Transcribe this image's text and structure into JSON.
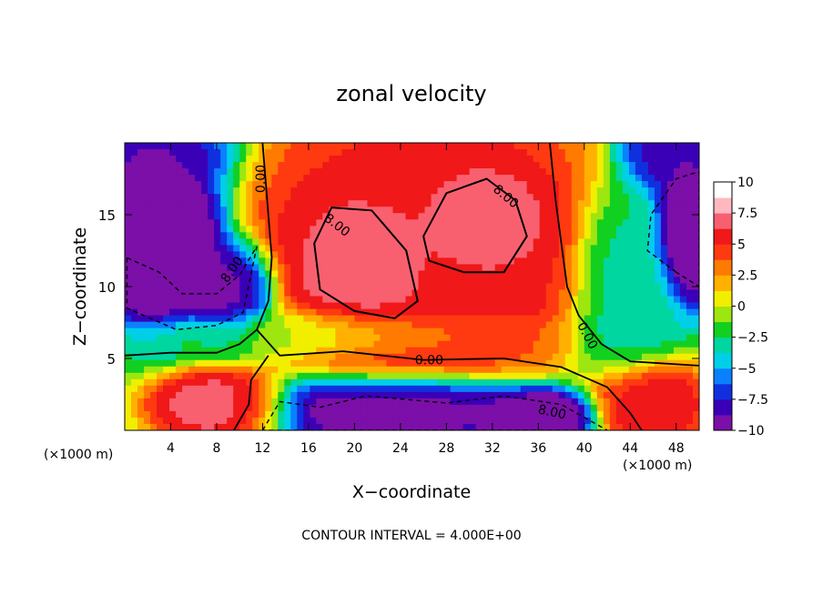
{
  "chart_data": {
    "type": "heatmap",
    "title": "zonal velocity",
    "xlabel": "X−coordinate",
    "ylabel": "Z−coordinate",
    "x_unit_left": "(×1000 m)",
    "x_unit_right": "(×1000 m)",
    "footer": "CONTOUR INTERVAL = 4.000E+00",
    "xlim": [
      0,
      50
    ],
    "ylim": [
      0,
      20
    ],
    "x_ticks": [
      {
        "value": 4,
        "label": "4"
      },
      {
        "value": 8,
        "label": "8"
      },
      {
        "value": 12,
        "label": "12"
      },
      {
        "value": 16,
        "label": "16"
      },
      {
        "value": 20,
        "label": "20"
      },
      {
        "value": 24,
        "label": "24"
      },
      {
        "value": 28,
        "label": "28"
      },
      {
        "value": 32,
        "label": "32"
      },
      {
        "value": 36,
        "label": "36"
      },
      {
        "value": 40,
        "label": "40"
      },
      {
        "value": 44,
        "label": "44"
      },
      {
        "value": 48,
        "label": "48"
      }
    ],
    "y_ticks": [
      {
        "value": 5,
        "label": "5"
      },
      {
        "value": 10,
        "label": "10"
      },
      {
        "value": 15,
        "label": "15"
      }
    ],
    "colorbar": {
      "range": [
        -10,
        10
      ],
      "labels": [
        {
          "value": 10,
          "label": "10"
        },
        {
          "value": 7.5,
          "label": "7.5"
        },
        {
          "value": 5,
          "label": "5"
        },
        {
          "value": 2.5,
          "label": "2.5"
        },
        {
          "value": 0,
          "label": "0"
        },
        {
          "value": -2.5,
          "label": "−2.5"
        },
        {
          "value": -5,
          "label": "−5"
        },
        {
          "value": -7.5,
          "label": "−7.5"
        },
        {
          "value": -10,
          "label": "−10"
        }
      ],
      "colors": [
        "#7b0fa8",
        "#3a00b8",
        "#1030e0",
        "#0a80ff",
        "#00cfe8",
        "#00d6a0",
        "#12d020",
        "#9ee610",
        "#f2ee00",
        "#ffb000",
        "#ff7a00",
        "#ff3a10",
        "#f01818",
        "#f86070",
        "#ffb8c0",
        "#ffffff"
      ]
    },
    "contour_labels": [
      {
        "text": "0.00",
        "x": 11.8,
        "z": 17.5,
        "rot": -90
      },
      {
        "text": "8.00",
        "x": 9.3,
        "z": 11.2,
        "rot": -55
      },
      {
        "text": "8.00",
        "x": 18.5,
        "z": 14.3,
        "rot": 38
      },
      {
        "text": "8.00",
        "x": 33.2,
        "z": 16.3,
        "rot": 40
      },
      {
        "text": "0.00",
        "x": 26.5,
        "z": 4.9,
        "rot": 0
      },
      {
        "text": "0.00",
        "x": 40.3,
        "z": 6.6,
        "rot": 62
      },
      {
        "text": "8.00",
        "x": 37.2,
        "z": 1.3,
        "rot": 12
      }
    ],
    "field_blobs": [
      {
        "x": 21,
        "z": 11.5,
        "rx": 5.5,
        "rz": 4.5,
        "v": 9
      },
      {
        "x": 31,
        "z": 14.5,
        "rx": 5,
        "rz": 3.5,
        "v": 9
      },
      {
        "x": 26,
        "z": 12,
        "rx": 11,
        "rz": 8,
        "v": 7
      },
      {
        "x": 8.5,
        "z": 1.7,
        "rx": 5,
        "rz": 2,
        "v": 9
      },
      {
        "x": 45.5,
        "z": 2,
        "rx": 4,
        "rz": 2.5,
        "v": 8
      },
      {
        "x": 3,
        "z": 13,
        "rx": 4.5,
        "rz": 5,
        "v": -13
      },
      {
        "x": 9,
        "z": 9.5,
        "rx": 3.5,
        "rz": 3,
        "v": -10
      },
      {
        "x": 1.5,
        "z": 19.5,
        "rx": 6,
        "rz": 3.5,
        "v": -9
      },
      {
        "x": 24,
        "z": 1.5,
        "rx": 11,
        "rz": 2,
        "v": -11
      },
      {
        "x": 36,
        "z": 1,
        "rx": 4,
        "rz": 1.5,
        "v": -12
      },
      {
        "x": 49,
        "z": 13.5,
        "rx": 2.5,
        "rz": 4,
        "v": -13
      },
      {
        "x": 48,
        "z": 19.5,
        "rx": 4,
        "rz": 3,
        "v": -9
      },
      {
        "x": 44,
        "z": 10,
        "rx": 4,
        "rz": 6,
        "v": -3
      },
      {
        "x": 16,
        "z": 6.8,
        "rx": 12,
        "rz": 1.5,
        "v": 0
      }
    ]
  }
}
